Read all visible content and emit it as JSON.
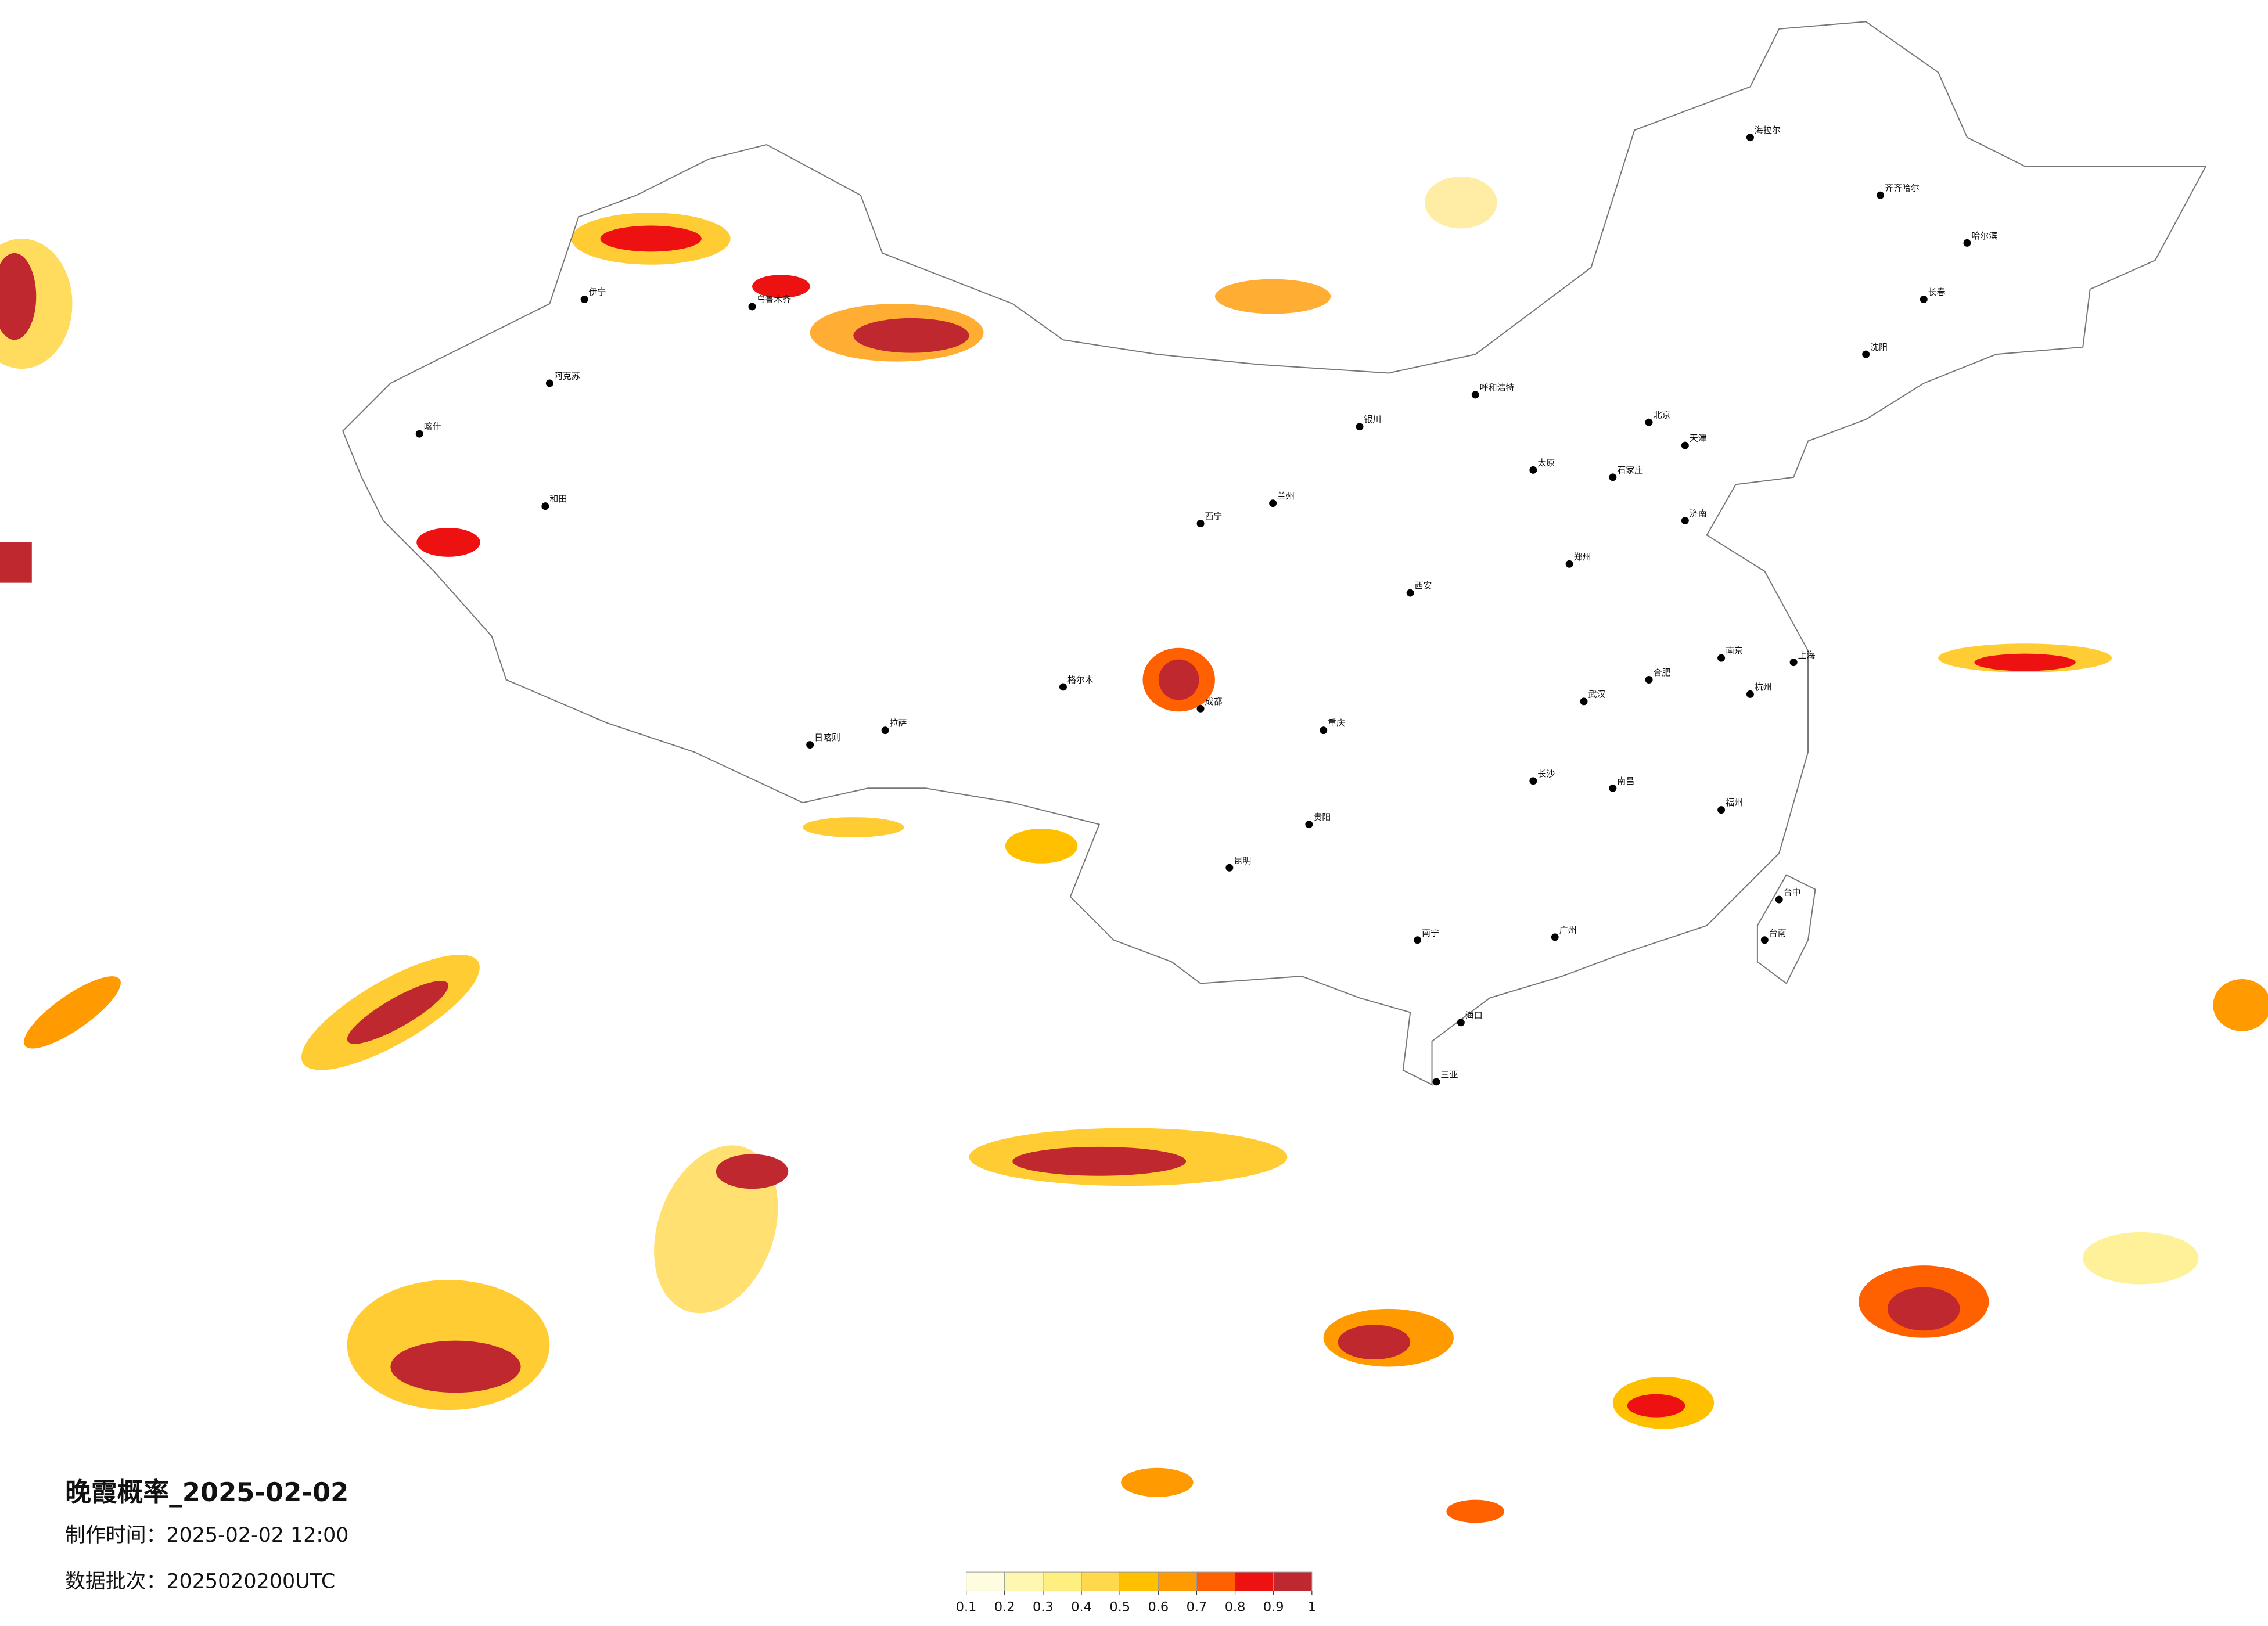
{
  "title": "晚霞概率_2025-02-02",
  "made_time": "制作时间：2025-02-02 12:00",
  "data_batch": "数据批次：2025020200UTC",
  "legend": {
    "ticks": [
      0.1,
      0.2,
      0.3,
      0.4,
      0.5,
      0.6,
      0.7,
      0.8,
      0.9,
      1
    ],
    "colors": [
      "#fffde0",
      "#fff7b0",
      "#ffee80",
      "#ffd84d",
      "#ffc000",
      "#ff9a00",
      "#ff6000",
      "#ee1111",
      "#c0282f"
    ]
  },
  "cities": [
    "乌鲁木齐",
    "伊宁",
    "喀什",
    "和田",
    "阿克苏",
    "拉萨",
    "日喀则",
    "格尔木",
    "西宁",
    "兰州",
    "银川",
    "呼和浩特",
    "北京",
    "天津",
    "石家庄",
    "太原",
    "济南",
    "郑州",
    "西安",
    "成都",
    "重庆",
    "贵阳",
    "昆明",
    "南宁",
    "广州",
    "长沙",
    "武汉",
    "南昌",
    "杭州",
    "上海",
    "南京",
    "合肥",
    "福州",
    "沈阳",
    "长春",
    "哈尔滨",
    "齐齐哈尔",
    "海拉尔",
    "海口",
    "三亚",
    "台中",
    "台南"
  ]
}
